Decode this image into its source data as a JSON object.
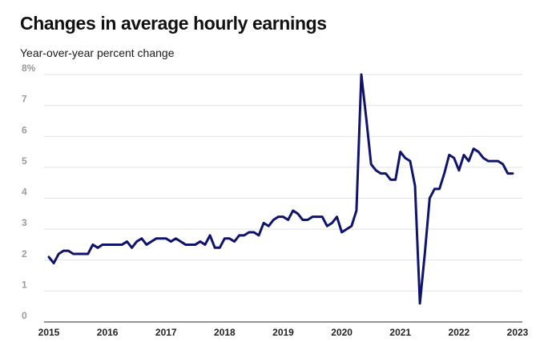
{
  "chart_data": {
    "type": "line",
    "title": "Changes in average hourly earnings",
    "subtitle": "Year-over-year percent change",
    "xlabel": "",
    "ylabel": "",
    "xlim": [
      2015,
      2023
    ],
    "ylim": [
      0,
      8
    ],
    "grid": true,
    "line_color": "#10136b",
    "y_ticks": [
      {
        "value": 0,
        "label": "0"
      },
      {
        "value": 1,
        "label": "1"
      },
      {
        "value": 2,
        "label": "2"
      },
      {
        "value": 3,
        "label": "3"
      },
      {
        "value": 4,
        "label": "4"
      },
      {
        "value": 5,
        "label": "5"
      },
      {
        "value": 6,
        "label": "6"
      },
      {
        "value": 7,
        "label": "7"
      },
      {
        "value": 8,
        "label": "8%"
      }
    ],
    "x_ticks": [
      {
        "value": 2015,
        "label": "2015"
      },
      {
        "value": 2016,
        "label": "2016"
      },
      {
        "value": 2017,
        "label": "2017"
      },
      {
        "value": 2018,
        "label": "2018"
      },
      {
        "value": 2019,
        "label": "2019"
      },
      {
        "value": 2020,
        "label": "2020"
      },
      {
        "value": 2021,
        "label": "2021"
      },
      {
        "value": 2022,
        "label": "2022"
      },
      {
        "value": 2023,
        "label": "2023"
      }
    ],
    "series": [
      {
        "x": [
          "2015-01",
          "2015-02",
          "2015-03",
          "2015-04",
          "2015-05",
          "2015-06",
          "2015-07",
          "2015-08",
          "2015-09",
          "2015-10",
          "2015-11",
          "2015-12",
          "2016-01",
          "2016-02",
          "2016-03",
          "2016-04",
          "2016-05",
          "2016-06",
          "2016-07",
          "2016-08",
          "2016-09",
          "2016-10",
          "2016-11",
          "2016-12",
          "2017-01",
          "2017-02",
          "2017-03",
          "2017-04",
          "2017-05",
          "2017-06",
          "2017-07",
          "2017-08",
          "2017-09",
          "2017-10",
          "2017-11",
          "2017-12",
          "2018-01",
          "2018-02",
          "2018-03",
          "2018-04",
          "2018-05",
          "2018-06",
          "2018-07",
          "2018-08",
          "2018-09",
          "2018-10",
          "2018-11",
          "2018-12",
          "2019-01",
          "2019-02",
          "2019-03",
          "2019-04",
          "2019-05",
          "2019-06",
          "2019-07",
          "2019-08",
          "2019-09",
          "2019-10",
          "2019-11",
          "2019-12",
          "2020-01",
          "2020-02",
          "2020-03",
          "2020-04",
          "2020-05",
          "2020-06",
          "2020-07",
          "2020-08",
          "2020-09",
          "2020-10",
          "2020-11",
          "2020-12",
          "2021-01",
          "2021-02",
          "2021-03",
          "2021-04",
          "2021-05",
          "2021-06",
          "2021-07",
          "2021-08",
          "2021-09",
          "2021-10",
          "2021-11",
          "2021-12",
          "2022-01",
          "2022-02",
          "2022-03",
          "2022-04",
          "2022-05",
          "2022-06",
          "2022-07",
          "2022-08",
          "2022-09",
          "2022-10",
          "2022-11",
          "2022-12"
        ],
        "values": [
          2.1,
          1.9,
          2.2,
          2.3,
          2.3,
          2.2,
          2.2,
          2.2,
          2.2,
          2.5,
          2.4,
          2.5,
          2.5,
          2.5,
          2.5,
          2.5,
          2.6,
          2.4,
          2.6,
          2.7,
          2.5,
          2.6,
          2.7,
          2.7,
          2.7,
          2.6,
          2.7,
          2.6,
          2.5,
          2.5,
          2.5,
          2.6,
          2.5,
          2.8,
          2.4,
          2.4,
          2.7,
          2.7,
          2.6,
          2.8,
          2.8,
          2.9,
          2.9,
          2.8,
          3.2,
          3.1,
          3.3,
          3.4,
          3.4,
          3.3,
          3.6,
          3.5,
          3.3,
          3.3,
          3.4,
          3.4,
          3.4,
          3.1,
          3.2,
          3.4,
          2.9,
          3.0,
          3.1,
          3.6,
          8.0,
          6.6,
          5.1,
          4.9,
          4.8,
          4.8,
          4.6,
          4.6,
          5.5,
          5.3,
          5.2,
          4.4,
          0.6,
          2.2,
          4.0,
          4.3,
          4.3,
          4.8,
          5.4,
          5.3,
          4.9,
          5.4,
          5.2,
          5.6,
          5.5,
          5.3,
          5.2,
          5.2,
          5.2,
          5.1,
          4.8,
          4.8
        ]
      }
    ]
  }
}
